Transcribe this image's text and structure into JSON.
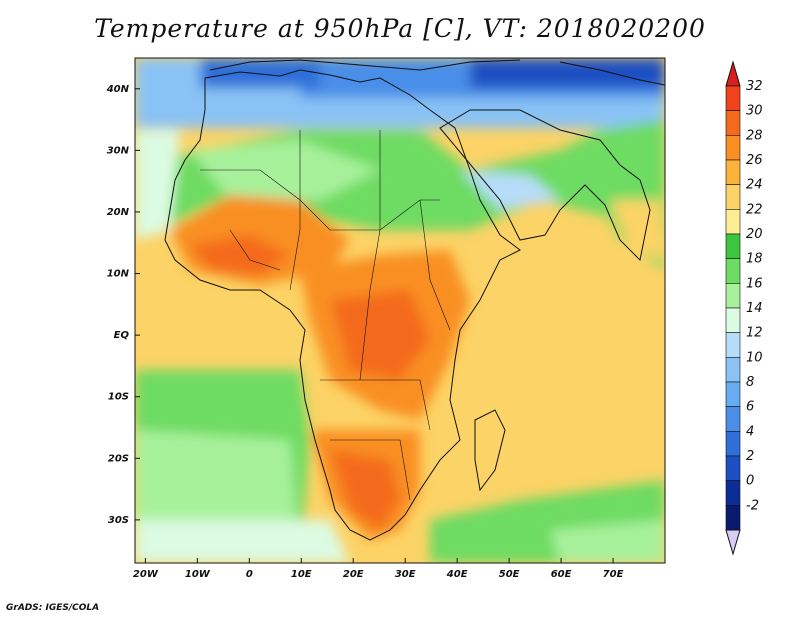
{
  "title": "Temperature at 950hPa [C], VT: 2018020200",
  "credit": "GrADS: IGES/COLA",
  "lon_ticks": [
    {
      "label": "20W",
      "value": -20
    },
    {
      "label": "10W",
      "value": -10
    },
    {
      "label": "0",
      "value": 0
    },
    {
      "label": "10E",
      "value": 10
    },
    {
      "label": "20E",
      "value": 20
    },
    {
      "label": "30E",
      "value": 30
    },
    {
      "label": "40E",
      "value": 40
    },
    {
      "label": "50E",
      "value": 50
    },
    {
      "label": "60E",
      "value": 60
    },
    {
      "label": "70E",
      "value": 70
    }
  ],
  "lat_ticks": [
    {
      "label": "40N",
      "value": 40
    },
    {
      "label": "30N",
      "value": 30
    },
    {
      "label": "20N",
      "value": 20
    },
    {
      "label": "10N",
      "value": 10
    },
    {
      "label": "EQ",
      "value": 0
    },
    {
      "label": "10S",
      "value": -10
    },
    {
      "label": "20S",
      "value": -20
    },
    {
      "label": "30S",
      "value": -30
    }
  ],
  "map_extent": {
    "lon_min": -22,
    "lon_max": 80,
    "lat_min": -37,
    "lat_max": 45
  },
  "colorbar": {
    "levels": [
      "32",
      "30",
      "28",
      "26",
      "24",
      "22",
      "20",
      "18",
      "16",
      "14",
      "12",
      "10",
      "8",
      "6",
      "4",
      "2",
      "0",
      "-2"
    ],
    "colors": [
      "#f0421b",
      "#f46a1d",
      "#f98f20",
      "#fbb33a",
      "#fcd366",
      "#fded93",
      "#3ec43e",
      "#6edb62",
      "#a7f19b",
      "#dcfbe3",
      "#b7dcf9",
      "#89c2f5",
      "#66acf1",
      "#4a8ee8",
      "#2f6fd9",
      "#1b4fc2",
      "#0c2c96",
      "#0a1a6e"
    ],
    "top_arrow_color": "#d81e1e",
    "bottom_arrow_color": "#d6ccf5"
  }
}
